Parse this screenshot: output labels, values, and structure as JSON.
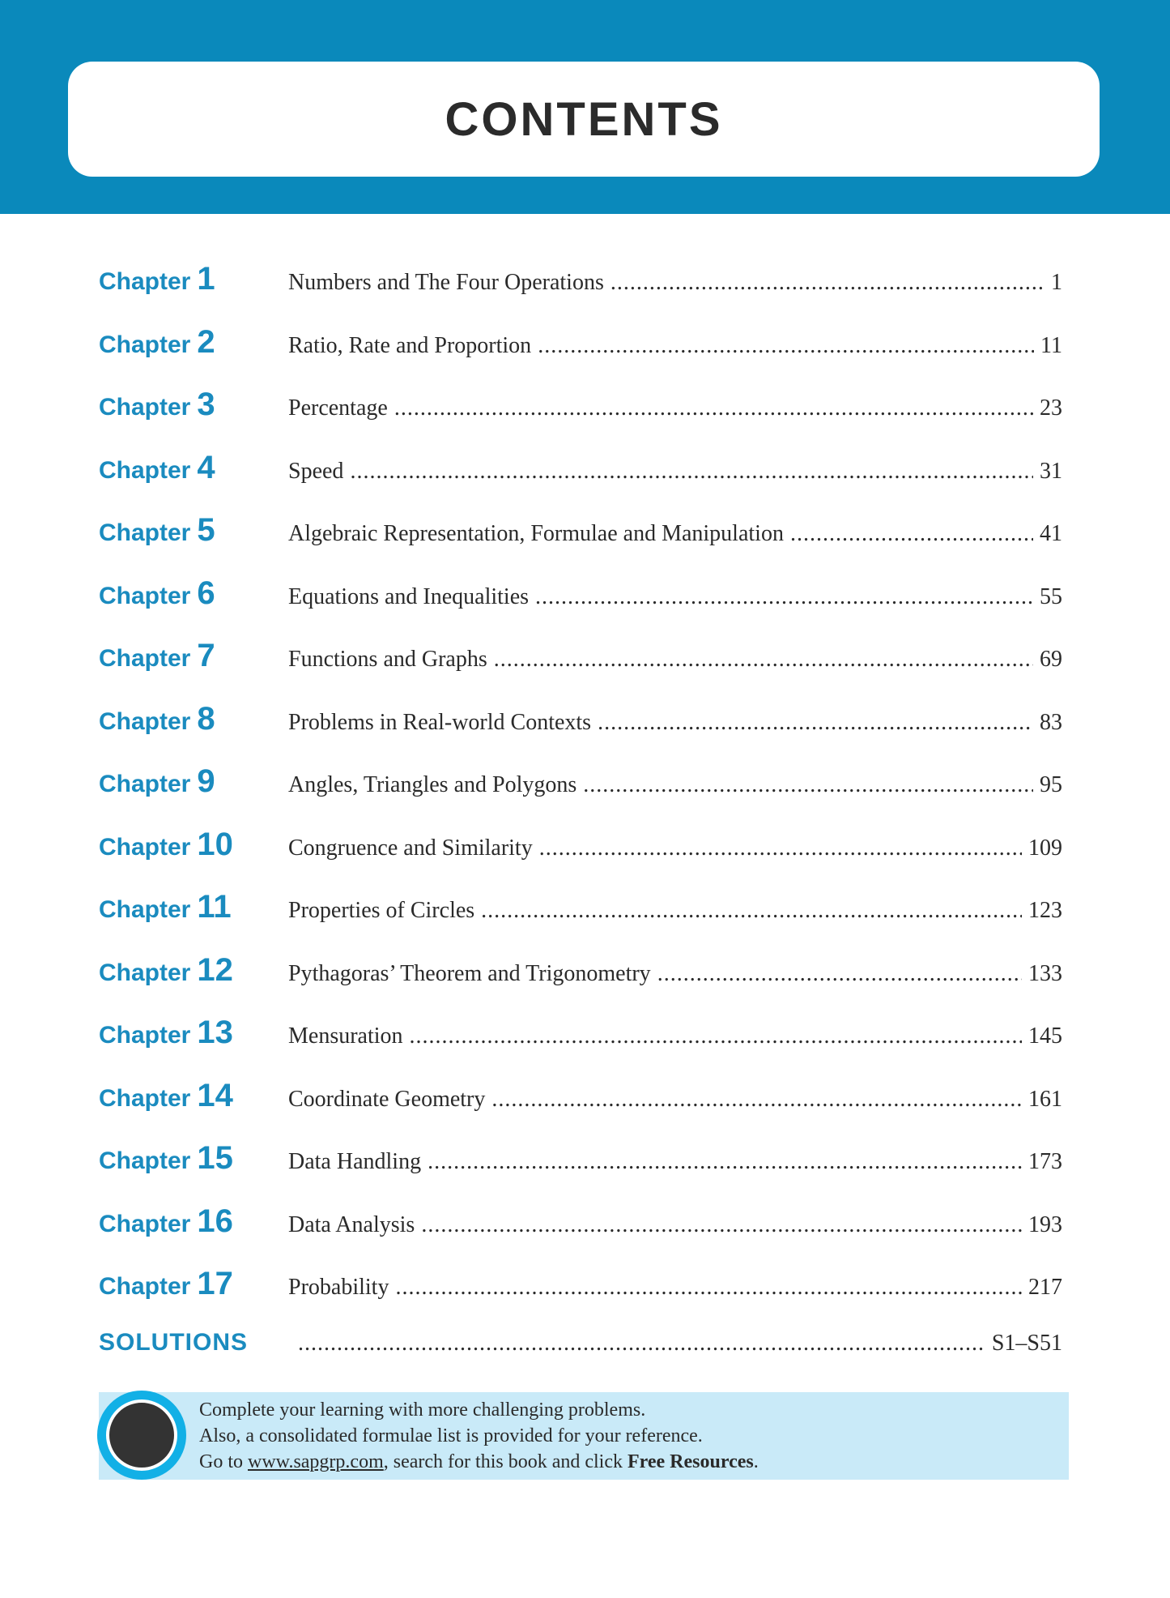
{
  "header": {
    "title": "CONTENTS",
    "band_color": "#0a89bb",
    "accent_color": "#1a8bbf"
  },
  "chapters": [
    {
      "label": "Chapter",
      "num": "1",
      "title": "Numbers and The Four Operations",
      "page": "1"
    },
    {
      "label": "Chapter",
      "num": "2",
      "title": "Ratio, Rate and Proportion",
      "page": "11"
    },
    {
      "label": "Chapter",
      "num": "3",
      "title": "Percentage",
      "page": "23"
    },
    {
      "label": "Chapter",
      "num": "4",
      "title": "Speed",
      "page": "31"
    },
    {
      "label": "Chapter",
      "num": "5",
      "title": "Algebraic Representation, Formulae and Manipulation",
      "page": "41"
    },
    {
      "label": "Chapter",
      "num": "6",
      "title": "Equations and Inequalities",
      "page": "55"
    },
    {
      "label": "Chapter",
      "num": "7",
      "title": "Functions and Graphs",
      "page": "69"
    },
    {
      "label": "Chapter",
      "num": "8",
      "title": "Problems in Real-world Contexts",
      "page": "83"
    },
    {
      "label": "Chapter",
      "num": "9",
      "title": "Angles, Triangles and Polygons",
      "page": "95"
    },
    {
      "label": "Chapter",
      "num": "10",
      "title": "Congruence and Similarity",
      "page": "109"
    },
    {
      "label": "Chapter",
      "num": "11",
      "title": "Properties of Circles",
      "page": "123"
    },
    {
      "label": "Chapter",
      "num": "12",
      "title": "Pythagoras’ Theorem and Trigonometry",
      "page": "133"
    },
    {
      "label": "Chapter",
      "num": "13",
      "title": "Mensuration",
      "page": "145"
    },
    {
      "label": "Chapter",
      "num": "14",
      "title": "Coordinate Geometry",
      "page": "161"
    },
    {
      "label": "Chapter",
      "num": "15",
      "title": "Data Handling",
      "page": "173"
    },
    {
      "label": "Chapter",
      "num": "16",
      "title": "Data Analysis",
      "page": "193"
    },
    {
      "label": "Chapter",
      "num": "17",
      "title": "Probability",
      "page": "217"
    }
  ],
  "solutions": {
    "label": "SOLUTIONS",
    "page": "S1–S51"
  },
  "note": {
    "icon": "keyboard-badge-icon",
    "line1": "Complete your learning with more challenging problems.",
    "line2": "Also, a consolidated formulae list is provided for your reference.",
    "line3_pre": "Go to ",
    "link": "www.sapgrp.com",
    "line3_mid": ", search for this book and click ",
    "bold": "Free Resources",
    "line3_end": "."
  }
}
